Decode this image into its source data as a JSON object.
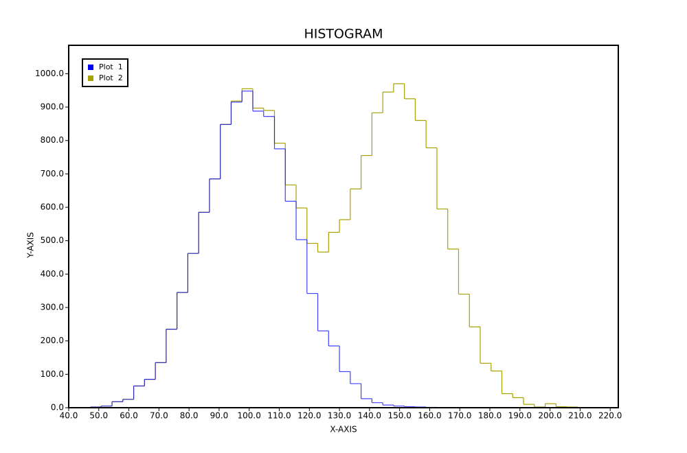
{
  "chart_data": {
    "type": "histogram",
    "title": "HISTOGRAM",
    "x_label": "X-AXIS",
    "y_label": "Y-AXIS",
    "bins": [
      40,
      43.6,
      47.2,
      50.8,
      54.4,
      58,
      61.6,
      65.2,
      68.8,
      72.4,
      76,
      79.6,
      83.2,
      86.8,
      90.4,
      94,
      97.6,
      101.2,
      104.8,
      108.4,
      112,
      115.6,
      119.2,
      122.8,
      126.4,
      130,
      133.6,
      137.2,
      140.8,
      144.4,
      148,
      151.6,
      155.2,
      158.8,
      162.4,
      166,
      169.6,
      173.2,
      176.8,
      180.4,
      184,
      187.6,
      191.2,
      194.8,
      198.4,
      202,
      205.6,
      209.2,
      212.8,
      216.4,
      220
    ],
    "series": [
      {
        "name": "Plot  2",
        "color": "#a8a000",
        "values": [
          0,
          0,
          2,
          5,
          18,
          25,
          65,
          85,
          135,
          235,
          345,
          462,
          585,
          685,
          848,
          918,
          955,
          897,
          890,
          792,
          667,
          598,
          492,
          466,
          525,
          563,
          655,
          755,
          883,
          945,
          970,
          925,
          860,
          778,
          595,
          475,
          340,
          242,
          133,
          110,
          42,
          30,
          10,
          2,
          12,
          3,
          2,
          0,
          0,
          0
        ]
      },
      {
        "name": "Plot  1",
        "color": "#0000ff",
        "values": [
          0,
          0,
          2,
          5,
          18,
          25,
          65,
          85,
          135,
          235,
          345,
          462,
          585,
          685,
          848,
          915,
          948,
          888,
          872,
          775,
          618,
          503,
          342,
          230,
          185,
          108,
          72,
          27,
          15,
          8,
          5,
          3,
          2,
          1,
          0,
          0,
          0,
          0,
          0,
          0,
          0,
          0,
          0,
          0,
          0,
          0,
          0,
          0,
          0,
          0
        ]
      }
    ],
    "xlim": [
      40,
      222.7
    ],
    "ylim": [
      0,
      1085
    ],
    "xticks": [
      {
        "value": 40,
        "label": "40.0"
      },
      {
        "value": 50,
        "label": "50.0"
      },
      {
        "value": 60,
        "label": "60.0"
      },
      {
        "value": 70,
        "label": "70.0"
      },
      {
        "value": 80,
        "label": "80.0"
      },
      {
        "value": 90,
        "label": "90.0"
      },
      {
        "value": 100,
        "label": "100.0"
      },
      {
        "value": 110,
        "label": "110.0"
      },
      {
        "value": 120,
        "label": "120.0"
      },
      {
        "value": 130,
        "label": "130.0"
      },
      {
        "value": 140,
        "label": "140.0"
      },
      {
        "value": 150,
        "label": "150.0"
      },
      {
        "value": 160,
        "label": "160.0"
      },
      {
        "value": 170,
        "label": "170.0"
      },
      {
        "value": 180,
        "label": "180.0"
      },
      {
        "value": 190,
        "label": "190.0"
      },
      {
        "value": 200,
        "label": "200.0"
      },
      {
        "value": 210,
        "label": "210.0"
      },
      {
        "value": 220,
        "label": "220.0"
      }
    ],
    "yticks": [
      {
        "value": 0,
        "label": "0.0"
      },
      {
        "value": 100,
        "label": "100.0"
      },
      {
        "value": 200,
        "label": "200.0"
      },
      {
        "value": 300,
        "label": "300.0"
      },
      {
        "value": 400,
        "label": "400.0"
      },
      {
        "value": 500,
        "label": "500.0"
      },
      {
        "value": 600,
        "label": "600.0"
      },
      {
        "value": 700,
        "label": "700.0"
      },
      {
        "value": 800,
        "label": "800.0"
      },
      {
        "value": 900,
        "label": "900.0"
      },
      {
        "value": 1000,
        "label": "1000.0"
      }
    ],
    "grid": false,
    "legend": "upper left"
  }
}
